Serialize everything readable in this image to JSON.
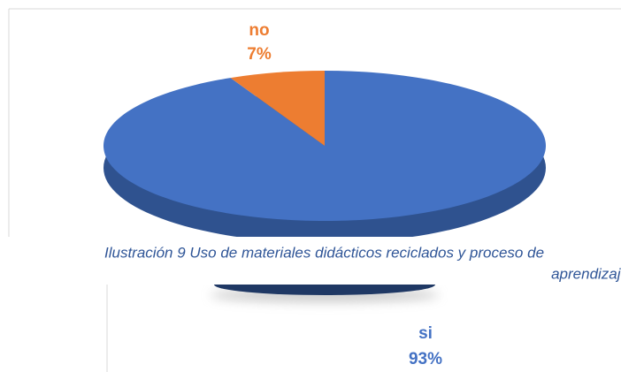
{
  "chart_data": {
    "type": "pie",
    "categories": [
      "si",
      "no"
    ],
    "values": [
      93,
      7
    ],
    "value_labels": [
      "93%",
      "7%"
    ],
    "colors": [
      "#4472c4",
      "#ed7d31"
    ],
    "caption": [
      "Ilustración 9 Uso de materiales didácticos reciclados y proceso de",
      "aprendizaje"
    ]
  }
}
